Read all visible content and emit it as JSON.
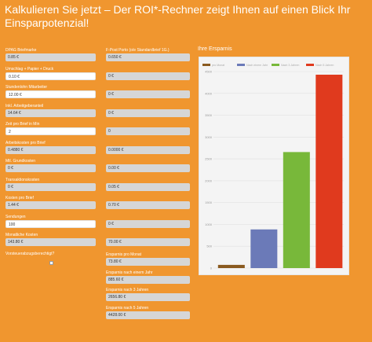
{
  "header": {
    "title": "Kalkulieren Sie jetzt – Der ROI*-Rechner zeigt Ihnen auf einen Blick Ihr Einsparpotenzial!"
  },
  "left_fields": [
    {
      "label": "DPAG Briefmarke",
      "value": "0.85 €",
      "editable": false
    },
    {
      "label": "Umschlag + Papier + Druck",
      "value": "0.10 €",
      "editable": true
    },
    {
      "label": "Stundenlohn Mitarbeiter",
      "value": "12.00 €",
      "editable": true
    },
    {
      "label": "Inkl. Arbeitgeberanteil",
      "value": "14.64 €",
      "editable": false
    },
    {
      "label": "Zeit pro Brief in Min",
      "value": "2",
      "editable": true
    },
    {
      "label": "Arbeitskosten pro Brief",
      "value": "0.4880 €",
      "editable": false
    },
    {
      "label": "Mtl. Grundkosten",
      "value": "0 €",
      "editable": false
    },
    {
      "label": "Transaktionskosten",
      "value": "0 €",
      "editable": false
    },
    {
      "label": "Kosten pro Brief",
      "value": "1.44 €",
      "editable": false
    },
    {
      "label": "Sendungen",
      "value": "100",
      "editable": true
    },
    {
      "label": "Monatliche Kosten",
      "value": "143.80 €",
      "editable": false
    }
  ],
  "right_fields": [
    {
      "label": "F-Post Porto (o/e Standardbrief 1G.)",
      "value": "0.650 €"
    },
    {
      "label": "",
      "value": "0 €"
    },
    {
      "label": "",
      "value": "0 €"
    },
    {
      "label": "",
      "value": "0 €"
    },
    {
      "label": "",
      "value": "0"
    },
    {
      "label": "",
      "value": "0.0000 €"
    },
    {
      "label": "",
      "value": "0.00 €"
    },
    {
      "label": "",
      "value": "0.05 €"
    },
    {
      "label": "",
      "value": "0.70 €"
    },
    {
      "label": "",
      "value": "0 €"
    },
    {
      "label": "",
      "value": "70.00 €"
    }
  ],
  "vat_label": "Vorsteuerabzugsberechtigt?",
  "savings": [
    {
      "label": "Ersparnis pro Monat",
      "value": "73.80 €"
    },
    {
      "label": "Ersparnis nach einem Jahr",
      "value": "885.60 €"
    },
    {
      "label": "Ersparnis nach 3 Jahren",
      "value": "2656.80 €"
    },
    {
      "label": "Ersparnis nach 5 Jahren",
      "value": "4428.00 €"
    }
  ],
  "chart_data": {
    "type": "bar",
    "title": "Ihre Ersparnis",
    "legend_position": "top",
    "series": [
      {
        "name": "pro Monat",
        "value": 73.8,
        "color": "#8a5a1f"
      },
      {
        "name": "Nach einem Jahr",
        "value": 885.6,
        "color": "#6b7ab8"
      },
      {
        "name": "Nach 3 Jahren",
        "value": 2656.8,
        "color": "#78b83a"
      },
      {
        "name": "Nach 5 Jahren",
        "value": 4428.0,
        "color": "#e03a1e"
      }
    ],
    "ylim": [
      0,
      4500
    ],
    "yticks": [
      0,
      500,
      1000,
      1500,
      2000,
      2500,
      3000,
      3500,
      4000,
      4500
    ],
    "grid": true
  }
}
